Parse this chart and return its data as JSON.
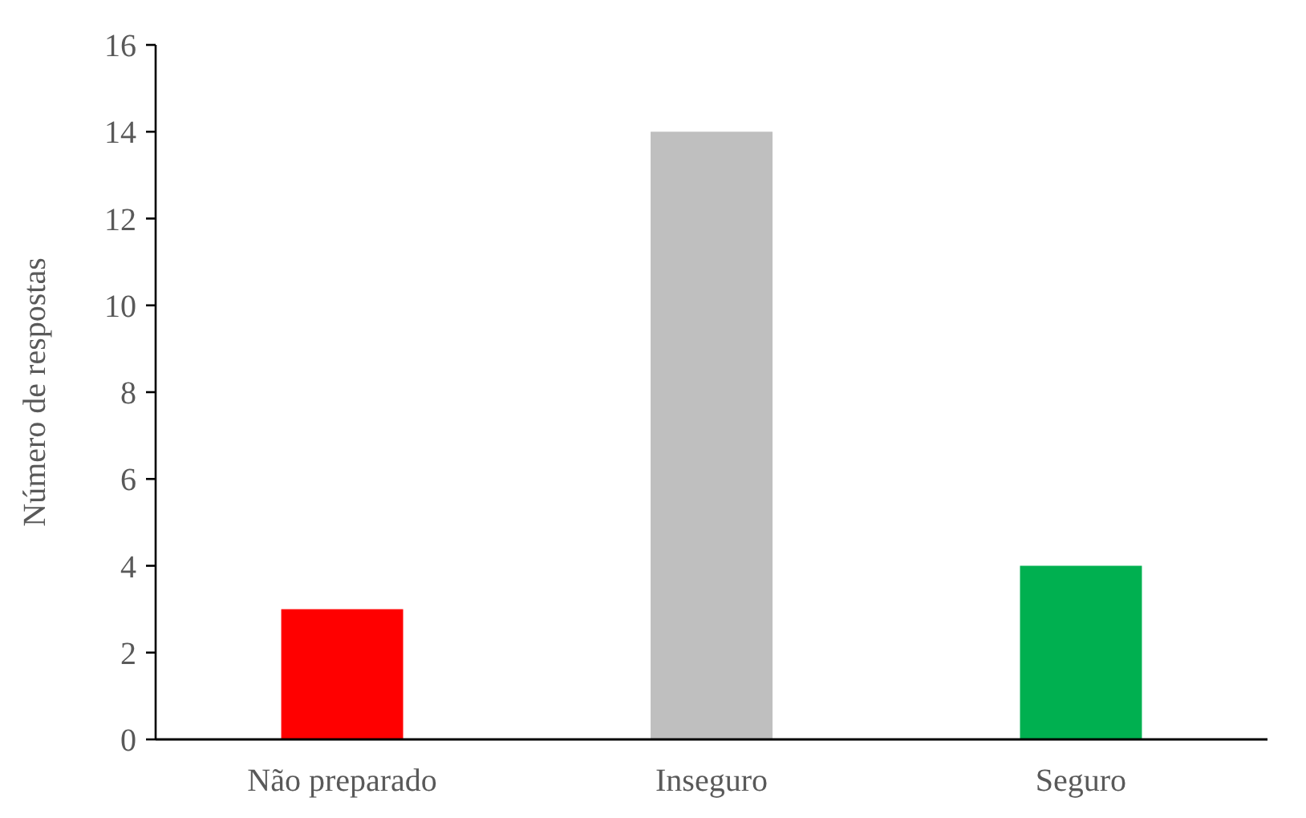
{
  "chart_data": {
    "type": "bar",
    "ylabel": "Número de respostas",
    "categories": [
      "Não preparado",
      "Inseguro",
      "Seguro"
    ],
    "values": [
      3,
      14,
      4
    ],
    "colors": [
      "#ff0000",
      "#bfbfbf",
      "#00b050"
    ],
    "ylim": [
      0,
      16
    ],
    "yticks": [
      0,
      2,
      4,
      6,
      8,
      10,
      12,
      14,
      16
    ],
    "grid": false
  }
}
